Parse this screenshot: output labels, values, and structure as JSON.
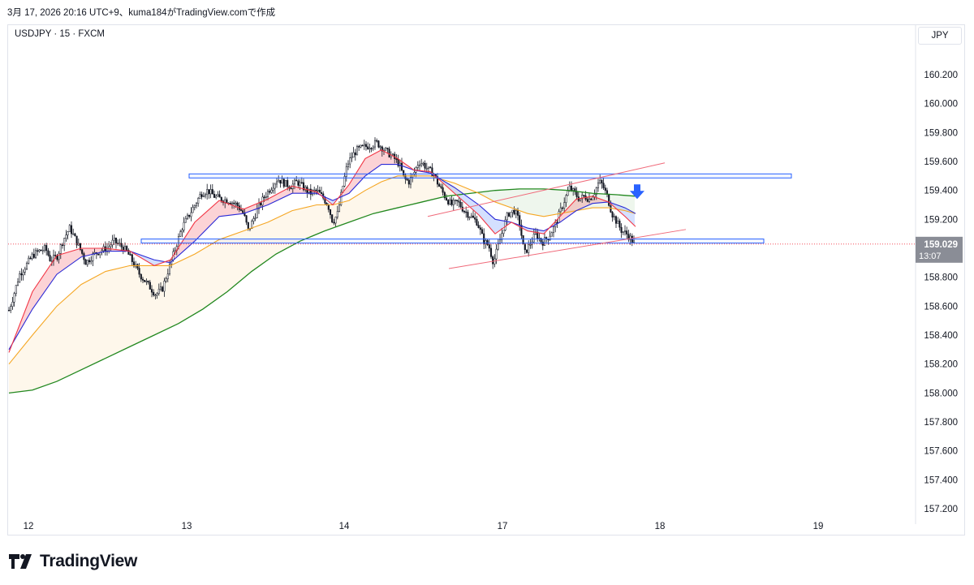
{
  "header": {
    "attribution": "3月 17, 2026 20:16 UTC+9、kuma184がTradingView.comで作成"
  },
  "symbol_line": "USDJPY · 15 · FXCM",
  "currency_button": "JPY",
  "brand": {
    "name": "TradingView",
    "logo_icon": "tradingview-logo-icon"
  },
  "chart_data": {
    "type": "candlestick",
    "symbol": "USDJPY",
    "timeframe": "15",
    "source": "FXCM",
    "currency": "JPY",
    "ylim": [
      157.1,
      160.4
    ],
    "y_ticks": [
      "160.200",
      "160.000",
      "159.800",
      "159.600",
      "159.400",
      "159.200",
      "159.000",
      "158.800",
      "158.600",
      "158.400",
      "158.200",
      "158.000",
      "157.800",
      "157.600",
      "157.400",
      "157.200"
    ],
    "x_ticks": [
      "12",
      "13",
      "14",
      "17",
      "18",
      "19"
    ],
    "last_price": {
      "value": "159.029",
      "countdown": "13:07"
    },
    "colors": {
      "up": "#131722",
      "down": "#131722",
      "ema_fast": "#f23645",
      "ema_mid": "#2b2bd6",
      "ema_slow": "#f5a623",
      "ema_long": "#22881f",
      "level_line": "#2962ff",
      "channel": "#f06a7a",
      "arrow": "#2962ff",
      "price_line": "#f23645"
    },
    "price_path": [
      [
        0,
        158.3
      ],
      [
        8,
        158.52
      ],
      [
        16,
        158.66
      ],
      [
        24,
        158.82
      ],
      [
        32,
        158.88
      ],
      [
        40,
        158.95
      ],
      [
        48,
        158.98
      ],
      [
        56,
        159.0
      ],
      [
        62,
        158.92
      ],
      [
        70,
        158.94
      ],
      [
        78,
        159.06
      ],
      [
        86,
        159.14
      ],
      [
        94,
        159.05
      ],
      [
        100,
        158.98
      ],
      [
        106,
        158.9
      ],
      [
        114,
        158.95
      ],
      [
        122,
        158.98
      ],
      [
        132,
        159.0
      ],
      [
        140,
        159.05
      ],
      [
        148,
        159.02
      ],
      [
        156,
        158.98
      ],
      [
        164,
        158.9
      ],
      [
        172,
        158.82
      ],
      [
        182,
        158.75
      ],
      [
        192,
        158.68
      ],
      [
        200,
        158.72
      ],
      [
        208,
        158.86
      ],
      [
        216,
        159.0
      ],
      [
        224,
        159.14
      ],
      [
        232,
        159.22
      ],
      [
        240,
        159.3
      ],
      [
        248,
        159.38
      ],
      [
        256,
        159.4
      ],
      [
        264,
        159.36
      ],
      [
        272,
        159.34
      ],
      [
        282,
        159.33
      ],
      [
        292,
        159.3
      ],
      [
        300,
        159.24
      ],
      [
        306,
        159.12
      ],
      [
        312,
        159.2
      ],
      [
        318,
        159.28
      ],
      [
        326,
        159.36
      ],
      [
        334,
        159.42
      ],
      [
        342,
        159.48
      ],
      [
        350,
        159.45
      ],
      [
        358,
        159.43
      ],
      [
        366,
        159.46
      ],
      [
        374,
        159.42
      ],
      [
        382,
        159.38
      ],
      [
        390,
        159.4
      ],
      [
        398,
        159.35
      ],
      [
        404,
        159.3
      ],
      [
        410,
        159.18
      ],
      [
        416,
        159.24
      ],
      [
        422,
        159.42
      ],
      [
        428,
        159.58
      ],
      [
        434,
        159.64
      ],
      [
        440,
        159.68
      ],
      [
        448,
        159.7
      ],
      [
        456,
        159.71
      ],
      [
        464,
        159.73
      ],
      [
        470,
        159.7
      ],
      [
        478,
        159.66
      ],
      [
        486,
        159.62
      ],
      [
        492,
        159.58
      ],
      [
        498,
        159.48
      ],
      [
        504,
        159.46
      ],
      [
        510,
        159.52
      ],
      [
        516,
        159.6
      ],
      [
        522,
        159.58
      ],
      [
        528,
        159.54
      ],
      [
        534,
        159.52
      ],
      [
        540,
        159.44
      ],
      [
        548,
        159.36
      ],
      [
        556,
        159.3
      ],
      [
        564,
        159.32
      ],
      [
        572,
        159.26
      ],
      [
        580,
        159.22
      ],
      [
        588,
        159.18
      ],
      [
        596,
        159.05
      ],
      [
        602,
        159.02
      ],
      [
        608,
        158.9
      ],
      [
        614,
        159.02
      ],
      [
        620,
        159.14
      ],
      [
        626,
        159.24
      ],
      [
        634,
        159.26
      ],
      [
        640,
        159.18
      ],
      [
        646,
        158.96
      ],
      [
        652,
        159.02
      ],
      [
        660,
        159.1
      ],
      [
        668,
        159.04
      ],
      [
        676,
        159.08
      ],
      [
        684,
        159.16
      ],
      [
        690,
        159.25
      ],
      [
        696,
        159.34
      ],
      [
        702,
        159.42
      ],
      [
        708,
        159.38
      ],
      [
        714,
        159.34
      ],
      [
        720,
        159.36
      ],
      [
        726,
        159.34
      ],
      [
        732,
        159.38
      ],
      [
        738,
        159.46
      ],
      [
        742,
        159.44
      ],
      [
        748,
        159.36
      ],
      [
        754,
        159.24
      ],
      [
        760,
        159.18
      ],
      [
        766,
        159.12
      ],
      [
        772,
        159.1
      ],
      [
        778,
        159.06
      ],
      [
        782,
        159.03
      ]
    ],
    "x_start": 11,
    "x_end": 783,
    "ema_fast": [
      [
        11,
        158.28
      ],
      [
        40,
        158.7
      ],
      [
        70,
        158.95
      ],
      [
        100,
        159.0
      ],
      [
        130,
        159.0
      ],
      [
        160,
        158.98
      ],
      [
        190,
        158.88
      ],
      [
        210,
        158.92
      ],
      [
        240,
        159.18
      ],
      [
        270,
        159.33
      ],
      [
        300,
        159.27
      ],
      [
        330,
        159.34
      ],
      [
        360,
        159.43
      ],
      [
        390,
        159.39
      ],
      [
        410,
        159.3
      ],
      [
        430,
        159.44
      ],
      [
        450,
        159.62
      ],
      [
        470,
        159.68
      ],
      [
        490,
        159.62
      ],
      [
        510,
        159.54
      ],
      [
        530,
        159.53
      ],
      [
        560,
        159.38
      ],
      [
        590,
        159.23
      ],
      [
        610,
        159.1
      ],
      [
        630,
        159.18
      ],
      [
        650,
        159.12
      ],
      [
        670,
        159.1
      ],
      [
        690,
        159.22
      ],
      [
        710,
        159.34
      ],
      [
        730,
        159.36
      ],
      [
        750,
        159.32
      ],
      [
        770,
        159.22
      ],
      [
        783,
        159.15
      ]
    ],
    "ema_mid": [
      [
        11,
        158.3
      ],
      [
        40,
        158.58
      ],
      [
        70,
        158.82
      ],
      [
        100,
        158.94
      ],
      [
        130,
        158.98
      ],
      [
        160,
        158.98
      ],
      [
        190,
        158.92
      ],
      [
        210,
        158.9
      ],
      [
        240,
        159.05
      ],
      [
        270,
        159.22
      ],
      [
        300,
        159.24
      ],
      [
        330,
        159.3
      ],
      [
        360,
        159.38
      ],
      [
        390,
        159.38
      ],
      [
        410,
        159.33
      ],
      [
        430,
        159.38
      ],
      [
        450,
        159.5
      ],
      [
        470,
        159.58
      ],
      [
        490,
        159.58
      ],
      [
        510,
        159.54
      ],
      [
        530,
        159.52
      ],
      [
        560,
        159.42
      ],
      [
        590,
        159.3
      ],
      [
        610,
        159.2
      ],
      [
        630,
        159.18
      ],
      [
        650,
        159.14
      ],
      [
        670,
        159.12
      ],
      [
        690,
        159.18
      ],
      [
        710,
        159.26
      ],
      [
        730,
        159.31
      ],
      [
        750,
        159.32
      ],
      [
        770,
        159.28
      ],
      [
        783,
        159.24
      ]
    ],
    "ema_slow": [
      [
        11,
        158.2
      ],
      [
        40,
        158.4
      ],
      [
        70,
        158.6
      ],
      [
        100,
        158.75
      ],
      [
        130,
        158.84
      ],
      [
        160,
        158.88
      ],
      [
        190,
        158.88
      ],
      [
        210,
        158.88
      ],
      [
        240,
        158.96
      ],
      [
        270,
        159.06
      ],
      [
        300,
        159.12
      ],
      [
        330,
        159.18
      ],
      [
        360,
        159.26
      ],
      [
        390,
        159.3
      ],
      [
        410,
        159.3
      ],
      [
        430,
        159.33
      ],
      [
        450,
        159.4
      ],
      [
        470,
        159.46
      ],
      [
        490,
        159.5
      ],
      [
        510,
        159.5
      ],
      [
        530,
        159.5
      ],
      [
        560,
        159.45
      ],
      [
        590,
        159.38
      ],
      [
        610,
        159.32
      ],
      [
        630,
        159.28
      ],
      [
        650,
        159.24
      ],
      [
        670,
        159.22
      ],
      [
        690,
        159.24
      ],
      [
        710,
        159.26
      ],
      [
        730,
        159.28
      ],
      [
        750,
        159.28
      ],
      [
        770,
        159.26
      ],
      [
        783,
        159.24
      ]
    ],
    "ema_long": [
      [
        11,
        158.0
      ],
      [
        40,
        158.02
      ],
      [
        70,
        158.08
      ],
      [
        100,
        158.16
      ],
      [
        130,
        158.24
      ],
      [
        160,
        158.32
      ],
      [
        190,
        158.4
      ],
      [
        220,
        158.48
      ],
      [
        250,
        158.58
      ],
      [
        280,
        158.7
      ],
      [
        310,
        158.84
      ],
      [
        340,
        158.96
      ],
      [
        370,
        159.05
      ],
      [
        400,
        159.12
      ],
      [
        430,
        159.18
      ],
      [
        460,
        159.24
      ],
      [
        490,
        159.28
      ],
      [
        520,
        159.32
      ],
      [
        550,
        159.36
      ],
      [
        580,
        159.38
      ],
      [
        610,
        159.4
      ],
      [
        640,
        159.41
      ],
      [
        670,
        159.41
      ],
      [
        700,
        159.4
      ],
      [
        730,
        159.38
      ],
      [
        760,
        159.37
      ],
      [
        783,
        159.36
      ]
    ],
    "levels": [
      {
        "x1": 233,
        "x2": 975,
        "price": 159.5
      },
      {
        "x1": 174,
        "x2": 941,
        "price": 159.05
      }
    ],
    "channel_lines": [
      {
        "x1": 527,
        "p1": 159.22,
        "x2": 819,
        "p2": 159.59
      },
      {
        "x1": 553,
        "p1": 158.86,
        "x2": 845,
        "p2": 159.13
      }
    ],
    "arrow": {
      "x": 785,
      "price": 159.38,
      "direction": "down"
    }
  }
}
